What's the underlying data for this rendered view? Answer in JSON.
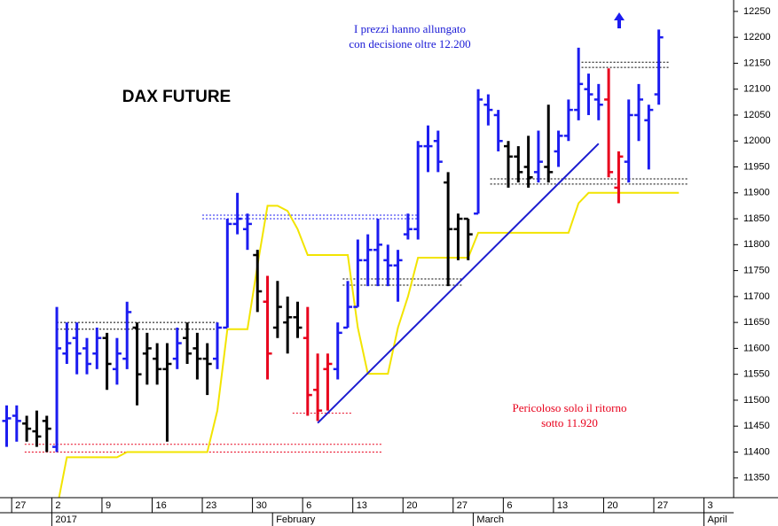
{
  "chart_data": {
    "type": "ohlc",
    "title": "DAX FUTURE",
    "annotations": [
      {
        "lines": [
          "I prezzi hanno allungato",
          "con decisione oltre 12.200"
        ],
        "color": "#1a1ad6"
      },
      {
        "lines": [
          "Pericoloso solo il ritorno",
          "sotto 11.920"
        ],
        "color": "#e8001c"
      }
    ],
    "categories": [
      null,
      "27",
      null,
      null,
      null,
      "2",
      null,
      null,
      null,
      null,
      "9",
      null,
      null,
      null,
      null,
      "16",
      null,
      null,
      null,
      null,
      "23",
      null,
      null,
      null,
      null,
      "30",
      null,
      null,
      null,
      null,
      "6",
      null,
      null,
      null,
      null,
      "13",
      null,
      null,
      null,
      null,
      "20",
      null,
      null,
      null,
      null,
      "27",
      null,
      null,
      null,
      null,
      "6",
      null,
      null,
      null,
      null,
      "13",
      null,
      null,
      null,
      null,
      "20",
      null,
      null,
      null,
      null,
      "27",
      null,
      null,
      null,
      null,
      "3"
    ],
    "months": [
      null,
      null,
      null,
      null,
      null,
      "2017",
      null,
      null,
      null,
      null,
      null,
      null,
      null,
      null,
      null,
      null,
      null,
      null,
      null,
      null,
      null,
      null,
      null,
      null,
      null,
      null,
      null,
      "February",
      null,
      null,
      null,
      null,
      null,
      null,
      null,
      null,
      null,
      null,
      null,
      null,
      null,
      null,
      null,
      null,
      null,
      null,
      null,
      "March",
      null,
      null,
      null,
      null,
      null,
      null,
      null,
      null,
      null,
      null,
      null,
      null,
      null,
      null,
      null,
      null,
      null,
      null,
      null,
      null,
      null,
      null,
      "April"
    ],
    "open": [
      11460,
      11470,
      11455,
      11440,
      11460,
      11410,
      11590,
      11620,
      11600,
      11590,
      11620,
      11560,
      11580,
      11640,
      11590,
      11580,
      11560,
      11580,
      11620,
      11600,
      11580,
      11580,
      11640,
      11840,
      11830,
      11780,
      11690,
      11640,
      11650,
      11660,
      11620,
      11520,
      11560,
      11560,
      11640,
      11680,
      11770,
      11790,
      11770,
      11760,
      11820,
      11830,
      11990,
      12000,
      11920,
      11830,
      11850,
      11860,
      12070,
      12050,
      11990,
      11970,
      11950,
      11940,
      11950,
      11980,
      12010,
      12060,
      12100,
      12080,
      12080,
      11910,
      11960,
      12050,
      12040,
      12090,
      null,
      null,
      null,
      null,
      null
    ],
    "high": [
      11490,
      11490,
      11470,
      11480,
      11470,
      11680,
      11650,
      11650,
      11620,
      11640,
      11630,
      11620,
      11690,
      11650,
      11630,
      11610,
      11610,
      11640,
      11650,
      11630,
      11610,
      11650,
      11850,
      11900,
      11860,
      11790,
      11740,
      11730,
      11700,
      11690,
      11680,
      11590,
      11590,
      11650,
      11730,
      11810,
      11820,
      11850,
      11800,
      11790,
      11860,
      12000,
      12030,
      12020,
      11940,
      11860,
      11850,
      12100,
      12090,
      12060,
      12000,
      11990,
      12010,
      12020,
      12070,
      12020,
      12080,
      12180,
      12130,
      12110,
      12140,
      11980,
      12080,
      12110,
      12070,
      12215,
      null,
      null,
      null,
      null,
      null
    ],
    "low": [
      11410,
      11420,
      11420,
      11410,
      11400,
      11400,
      11570,
      11550,
      11550,
      11560,
      11520,
      11530,
      11560,
      11490,
      11530,
      11530,
      11420,
      11560,
      11570,
      11540,
      11510,
      11560,
      11640,
      11820,
      11790,
      11670,
      11540,
      11620,
      11590,
      11620,
      11470,
      11460,
      11480,
      11540,
      11640,
      11680,
      11720,
      11720,
      11720,
      11690,
      11810,
      11810,
      11940,
      11940,
      11720,
      11770,
      11770,
      11860,
      12030,
      11980,
      11910,
      11920,
      11910,
      11920,
      11920,
      11950,
      12000,
      12040,
      12050,
      12040,
      11930,
      11880,
      11920,
      12000,
      11945,
      12070,
      null,
      null,
      null,
      null,
      null
    ],
    "close": [
      11465,
      11460,
      11445,
      11430,
      11445,
      11600,
      11610,
      11590,
      11570,
      11620,
      11570,
      11590,
      11670,
      11550,
      11600,
      11560,
      11570,
      11610,
      11590,
      11580,
      11570,
      11640,
      11840,
      11850,
      11840,
      11710,
      11590,
      11680,
      11660,
      11640,
      11510,
      11480,
      11570,
      11630,
      11680,
      11770,
      11790,
      11800,
      11760,
      11770,
      11830,
      11990,
      11990,
      11960,
      11830,
      11850,
      11820,
      12080,
      12060,
      12000,
      11970,
      11940,
      11930,
      11960,
      11940,
      12010,
      12060,
      12110,
      12090,
      12070,
      11940,
      11970,
      12050,
      12080,
      12060,
      12200,
      null,
      null,
      null,
      null,
      null
    ],
    "bar_colors": [
      "#1c1cf0",
      "#1c1cf0",
      "#000000",
      "#000000",
      "#000000",
      "#1c1cf0",
      "#1c1cf0",
      "#1c1cf0",
      "#1c1cf0",
      "#1c1cf0",
      "#000000",
      "#1c1cf0",
      "#1c1cf0",
      "#000000",
      "#000000",
      "#000000",
      "#000000",
      "#1c1cf0",
      "#000000",
      "#000000",
      "#000000",
      "#1c1cf0",
      "#1c1cf0",
      "#1c1cf0",
      "#1c1cf0",
      "#000000",
      "#e8001c",
      "#000000",
      "#000000",
      "#000000",
      "#e8001c",
      "#e8001c",
      "#e8001c",
      "#1c1cf0",
      "#1c1cf0",
      "#1c1cf0",
      "#1c1cf0",
      "#1c1cf0",
      "#1c1cf0",
      "#1c1cf0",
      "#1c1cf0",
      "#1c1cf0",
      "#1c1cf0",
      "#1c1cf0",
      "#000000",
      "#000000",
      "#000000",
      "#1c1cf0",
      "#1c1cf0",
      "#1c1cf0",
      "#000000",
      "#000000",
      "#000000",
      "#1c1cf0",
      "#000000",
      "#1c1cf0",
      "#1c1cf0",
      "#1c1cf0",
      "#1c1cf0",
      "#1c1cf0",
      "#e8001c",
      "#e8001c",
      "#1c1cf0",
      "#1c1cf0",
      "#1c1cf0",
      "#1c1cf0",
      null,
      null,
      null,
      null,
      null
    ],
    "stop_line": {
      "color": "#f2e400",
      "values": [
        null,
        null,
        null,
        null,
        null,
        11290,
        11390,
        11390,
        11390,
        11390,
        11390,
        11390,
        11400,
        11400,
        11400,
        11400,
        11400,
        11400,
        11400,
        11400,
        11400,
        11480,
        11637,
        11637,
        11637,
        11760,
        11875,
        11875,
        11865,
        11830,
        11780,
        11780,
        11780,
        11780,
        11780,
        11640,
        11551,
        11551,
        11551,
        11640,
        11700,
        11775,
        11775,
        11775,
        11775,
        11775,
        11775,
        11823,
        11823,
        11823,
        11823,
        11823,
        11823,
        11823,
        11823,
        11823,
        11823,
        11880,
        11900,
        11900,
        11900,
        11900,
        11900,
        11900,
        11900,
        11900,
        11900,
        11900,
        null,
        null,
        null
      ]
    },
    "trend_line": {
      "color": "#1c1cd0",
      "x": [
        31,
        59
      ],
      "values": [
        11456,
        11995
      ]
    },
    "levels": [
      {
        "value": 11650,
        "color": "#000000",
        "from": 5,
        "to": 21
      },
      {
        "value": 11637,
        "color": "#000000",
        "from": 5,
        "to": 21
      },
      {
        "value": 11857,
        "color": "#1c1cf0",
        "from": 19.5,
        "to": 41
      },
      {
        "value": 11850,
        "color": "#1c1cf0",
        "from": 19.5,
        "to": 41
      },
      {
        "value": 11734,
        "color": "#000000",
        "from": 33.5,
        "to": 45.5
      },
      {
        "value": 11722,
        "color": "#000000",
        "from": 33.5,
        "to": 45.5
      },
      {
        "value": 11475,
        "color": "#e8001c",
        "from": 28.5,
        "to": 34.5
      },
      {
        "value": 11415,
        "color": "#e8001c",
        "from": 1.8,
        "to": 37.5
      },
      {
        "value": 11400,
        "color": "#e8001c",
        "from": 1.8,
        "to": 37.5
      },
      {
        "value": 11927,
        "color": "#000000",
        "from": 48.2,
        "to": 68
      },
      {
        "value": 11917,
        "color": "#000000",
        "from": 48.2,
        "to": 68
      },
      {
        "value": 12152,
        "color": "#000000",
        "from": 57.3,
        "to": 66
      },
      {
        "value": 12142,
        "color": "#000000",
        "from": 57.3,
        "to": 66
      }
    ],
    "ylim": [
      11312,
      12272
    ],
    "yticks": [
      11350,
      11400,
      11450,
      11500,
      11550,
      11600,
      11650,
      11700,
      11750,
      11800,
      11850,
      11900,
      11950,
      12000,
      12050,
      12100,
      12150,
      12200,
      12250
    ]
  }
}
